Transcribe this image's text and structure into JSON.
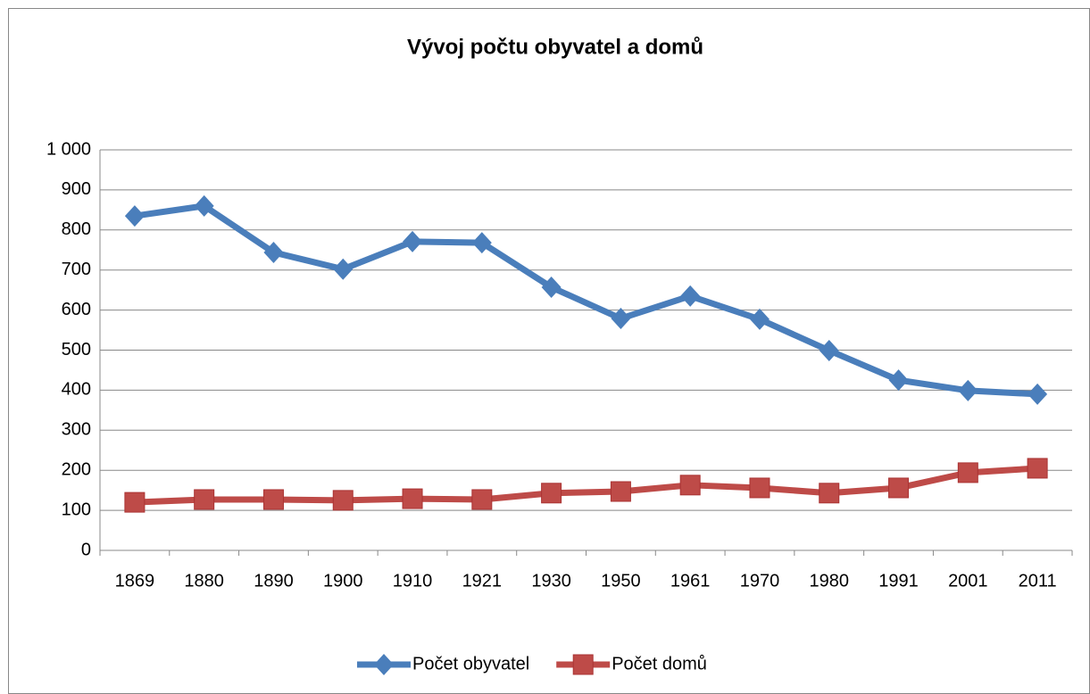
{
  "chart_data": {
    "type": "line",
    "title": "Vývoj počtu obyvatel a domů",
    "categories": [
      "1869",
      "1880",
      "1890",
      "1900",
      "1910",
      "1921",
      "1930",
      "1950",
      "1961",
      "1970",
      "1980",
      "1991",
      "2001",
      "2011"
    ],
    "series": [
      {
        "name": "Počet obyvatel",
        "color": "#4a7ebb",
        "marker": "diamond",
        "values": [
          835,
          860,
          744,
          702,
          771,
          768,
          657,
          579,
          635,
          577,
          499,
          425,
          399,
          390
        ]
      },
      {
        "name": "Počet domů",
        "color": "#be4b48",
        "marker": "square",
        "values": [
          120,
          127,
          127,
          125,
          129,
          127,
          143,
          147,
          163,
          156,
          143,
          156,
          194,
          205
        ]
      }
    ],
    "ylim": [
      0,
      1000
    ],
    "yticks": [
      0,
      100,
      200,
      300,
      400,
      500,
      600,
      700,
      800,
      900,
      {
        "value": 1000,
        "label": "1 000"
      }
    ],
    "grid": true,
    "legend": "bottom"
  }
}
